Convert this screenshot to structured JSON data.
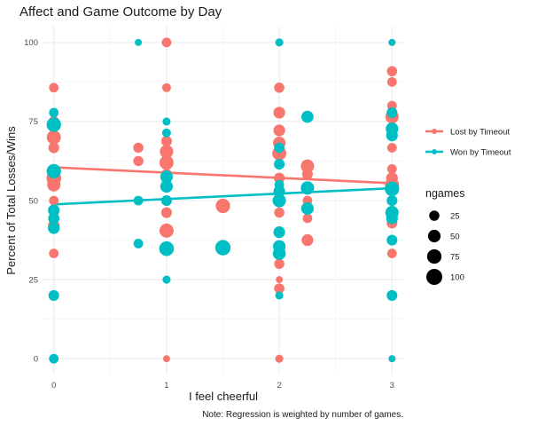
{
  "chart_data": {
    "type": "scatter",
    "title": "Affect and Game Outcome by Day",
    "xlabel": "I feel cheerful",
    "ylabel": "Percent of Total Losses/Wins",
    "caption": "Note: Regression is weighted by number of games.",
    "xlim": [
      -0.1,
      3.1
    ],
    "ylim": [
      -5,
      105
    ],
    "x_ticks": [
      0,
      1,
      2,
      3
    ],
    "y_ticks": [
      0,
      25,
      50,
      75,
      100
    ],
    "colors": {
      "Lost by Timeout": "#F8766D",
      "Won by Timeout": "#00BFC4"
    },
    "size_legend": {
      "title": "ngames",
      "values": [
        25,
        50,
        75,
        100
      ]
    },
    "series": [
      {
        "name": "Lost by Timeout",
        "color": "#F8766D",
        "regression": {
          "x0": 0,
          "y0": 60.5,
          "x1": 3,
          "y1": 55.5
        },
        "points": [
          {
            "x": 0,
            "y": 85.7,
            "n": 20
          },
          {
            "x": 0,
            "y": 75,
            "n": 30
          },
          {
            "x": 0,
            "y": 70,
            "n": 70
          },
          {
            "x": 0,
            "y": 66.7,
            "n": 30
          },
          {
            "x": 0,
            "y": 57.1,
            "n": 80
          },
          {
            "x": 0,
            "y": 55,
            "n": 60
          },
          {
            "x": 0,
            "y": 50,
            "n": 20
          },
          {
            "x": 0,
            "y": 42.1,
            "n": 40
          },
          {
            "x": 0,
            "y": 33.3,
            "n": 20
          },
          {
            "x": 0.75,
            "y": 66.7,
            "n": 25
          },
          {
            "x": 0.75,
            "y": 62.5,
            "n": 25
          },
          {
            "x": 1,
            "y": 100,
            "n": 20
          },
          {
            "x": 1,
            "y": 85.7,
            "n": 15
          },
          {
            "x": 1,
            "y": 68.8,
            "n": 30
          },
          {
            "x": 1,
            "y": 65.5,
            "n": 60
          },
          {
            "x": 1,
            "y": 62,
            "n": 70
          },
          {
            "x": 1,
            "y": 58.3,
            "n": 30
          },
          {
            "x": 1,
            "y": 50,
            "n": 25
          },
          {
            "x": 1,
            "y": 46.2,
            "n": 30
          },
          {
            "x": 1,
            "y": 40.5,
            "n": 70
          },
          {
            "x": 1,
            "y": 0,
            "n": 5
          },
          {
            "x": 1.5,
            "y": 48.3,
            "n": 75
          },
          {
            "x": 2,
            "y": 100,
            "n": 5
          },
          {
            "x": 2,
            "y": 85.7,
            "n": 25
          },
          {
            "x": 2,
            "y": 77.8,
            "n": 40
          },
          {
            "x": 2,
            "y": 72.2,
            "n": 40
          },
          {
            "x": 2,
            "y": 68.2,
            "n": 50
          },
          {
            "x": 2,
            "y": 64.9,
            "n": 70
          },
          {
            "x": 2,
            "y": 57.1,
            "n": 30
          },
          {
            "x": 2,
            "y": 50,
            "n": 30
          },
          {
            "x": 2,
            "y": 46.2,
            "n": 25
          },
          {
            "x": 2,
            "y": 33.3,
            "n": 20
          },
          {
            "x": 2,
            "y": 30,
            "n": 25
          },
          {
            "x": 2,
            "y": 25,
            "n": 5
          },
          {
            "x": 2,
            "y": 22.2,
            "n": 25
          },
          {
            "x": 2,
            "y": 0,
            "n": 10
          },
          {
            "x": 2.25,
            "y": 60.9,
            "n": 60
          },
          {
            "x": 2.25,
            "y": 58.3,
            "n": 30
          },
          {
            "x": 2.25,
            "y": 50,
            "n": 20
          },
          {
            "x": 2.25,
            "y": 44.4,
            "n": 20
          },
          {
            "x": 2.25,
            "y": 37.5,
            "n": 40
          },
          {
            "x": 3,
            "y": 100,
            "n": 5
          },
          {
            "x": 3,
            "y": 90.9,
            "n": 25
          },
          {
            "x": 3,
            "y": 87.5,
            "n": 20
          },
          {
            "x": 3,
            "y": 80,
            "n": 20
          },
          {
            "x": 3,
            "y": 76.5,
            "n": 60
          },
          {
            "x": 3,
            "y": 66.7,
            "n": 20
          },
          {
            "x": 3,
            "y": 60,
            "n": 20
          },
          {
            "x": 3,
            "y": 57.1,
            "n": 40
          },
          {
            "x": 3,
            "y": 55,
            "n": 70
          },
          {
            "x": 3,
            "y": 50,
            "n": 25
          },
          {
            "x": 3,
            "y": 42.9,
            "n": 30
          },
          {
            "x": 3,
            "y": 33.3,
            "n": 20
          },
          {
            "x": 3,
            "y": 0,
            "n": 5
          }
        ]
      },
      {
        "name": "Won by Timeout",
        "color": "#00BFC4",
        "regression": {
          "x0": 0,
          "y0": 48.8,
          "x1": 3,
          "y1": 53.9
        },
        "points": [
          {
            "x": 0,
            "y": 77.8,
            "n": 20
          },
          {
            "x": 0,
            "y": 74,
            "n": 75
          },
          {
            "x": 0,
            "y": 59.3,
            "n": 75
          },
          {
            "x": 0,
            "y": 46.9,
            "n": 40
          },
          {
            "x": 0,
            "y": 44.4,
            "n": 35
          },
          {
            "x": 0,
            "y": 41.3,
            "n": 40
          },
          {
            "x": 0,
            "y": 20,
            "n": 30
          },
          {
            "x": 0,
            "y": 0,
            "n": 20
          },
          {
            "x": 0.75,
            "y": 100,
            "n": 5
          },
          {
            "x": 0.75,
            "y": 50,
            "n": 20
          },
          {
            "x": 0.75,
            "y": 36.4,
            "n": 20
          },
          {
            "x": 1,
            "y": 75,
            "n": 10
          },
          {
            "x": 1,
            "y": 71.4,
            "n": 15
          },
          {
            "x": 1,
            "y": 57.5,
            "n": 50
          },
          {
            "x": 1,
            "y": 54.5,
            "n": 50
          },
          {
            "x": 1,
            "y": 50,
            "n": 30
          },
          {
            "x": 1,
            "y": 34.8,
            "n": 80
          },
          {
            "x": 1,
            "y": 25,
            "n": 10
          },
          {
            "x": 1.5,
            "y": 35.1,
            "n": 90
          },
          {
            "x": 2,
            "y": 100,
            "n": 10
          },
          {
            "x": 2,
            "y": 66.7,
            "n": 25
          },
          {
            "x": 2,
            "y": 61.5,
            "n": 30
          },
          {
            "x": 2,
            "y": 55,
            "n": 20
          },
          {
            "x": 2,
            "y": 52.9,
            "n": 40
          },
          {
            "x": 2,
            "y": 50,
            "n": 60
          },
          {
            "x": 2,
            "y": 40,
            "n": 40
          },
          {
            "x": 2,
            "y": 35.5,
            "n": 50
          },
          {
            "x": 2,
            "y": 33.3,
            "n": 55
          },
          {
            "x": 2,
            "y": 20,
            "n": 10
          },
          {
            "x": 2.25,
            "y": 76.5,
            "n": 45
          },
          {
            "x": 2.25,
            "y": 54,
            "n": 60
          },
          {
            "x": 2.25,
            "y": 47.5,
            "n": 50
          },
          {
            "x": 3,
            "y": 100,
            "n": 5
          },
          {
            "x": 3,
            "y": 77.8,
            "n": 30
          },
          {
            "x": 3,
            "y": 72.7,
            "n": 50
          },
          {
            "x": 3,
            "y": 70.6,
            "n": 40
          },
          {
            "x": 3,
            "y": 53.7,
            "n": 75
          },
          {
            "x": 3,
            "y": 50,
            "n": 30
          },
          {
            "x": 3,
            "y": 46.2,
            "n": 60
          },
          {
            "x": 3,
            "y": 44.4,
            "n": 40
          },
          {
            "x": 3,
            "y": 37.5,
            "n": 30
          },
          {
            "x": 3,
            "y": 20,
            "n": 30
          },
          {
            "x": 3,
            "y": 0,
            "n": 5
          }
        ]
      }
    ]
  }
}
